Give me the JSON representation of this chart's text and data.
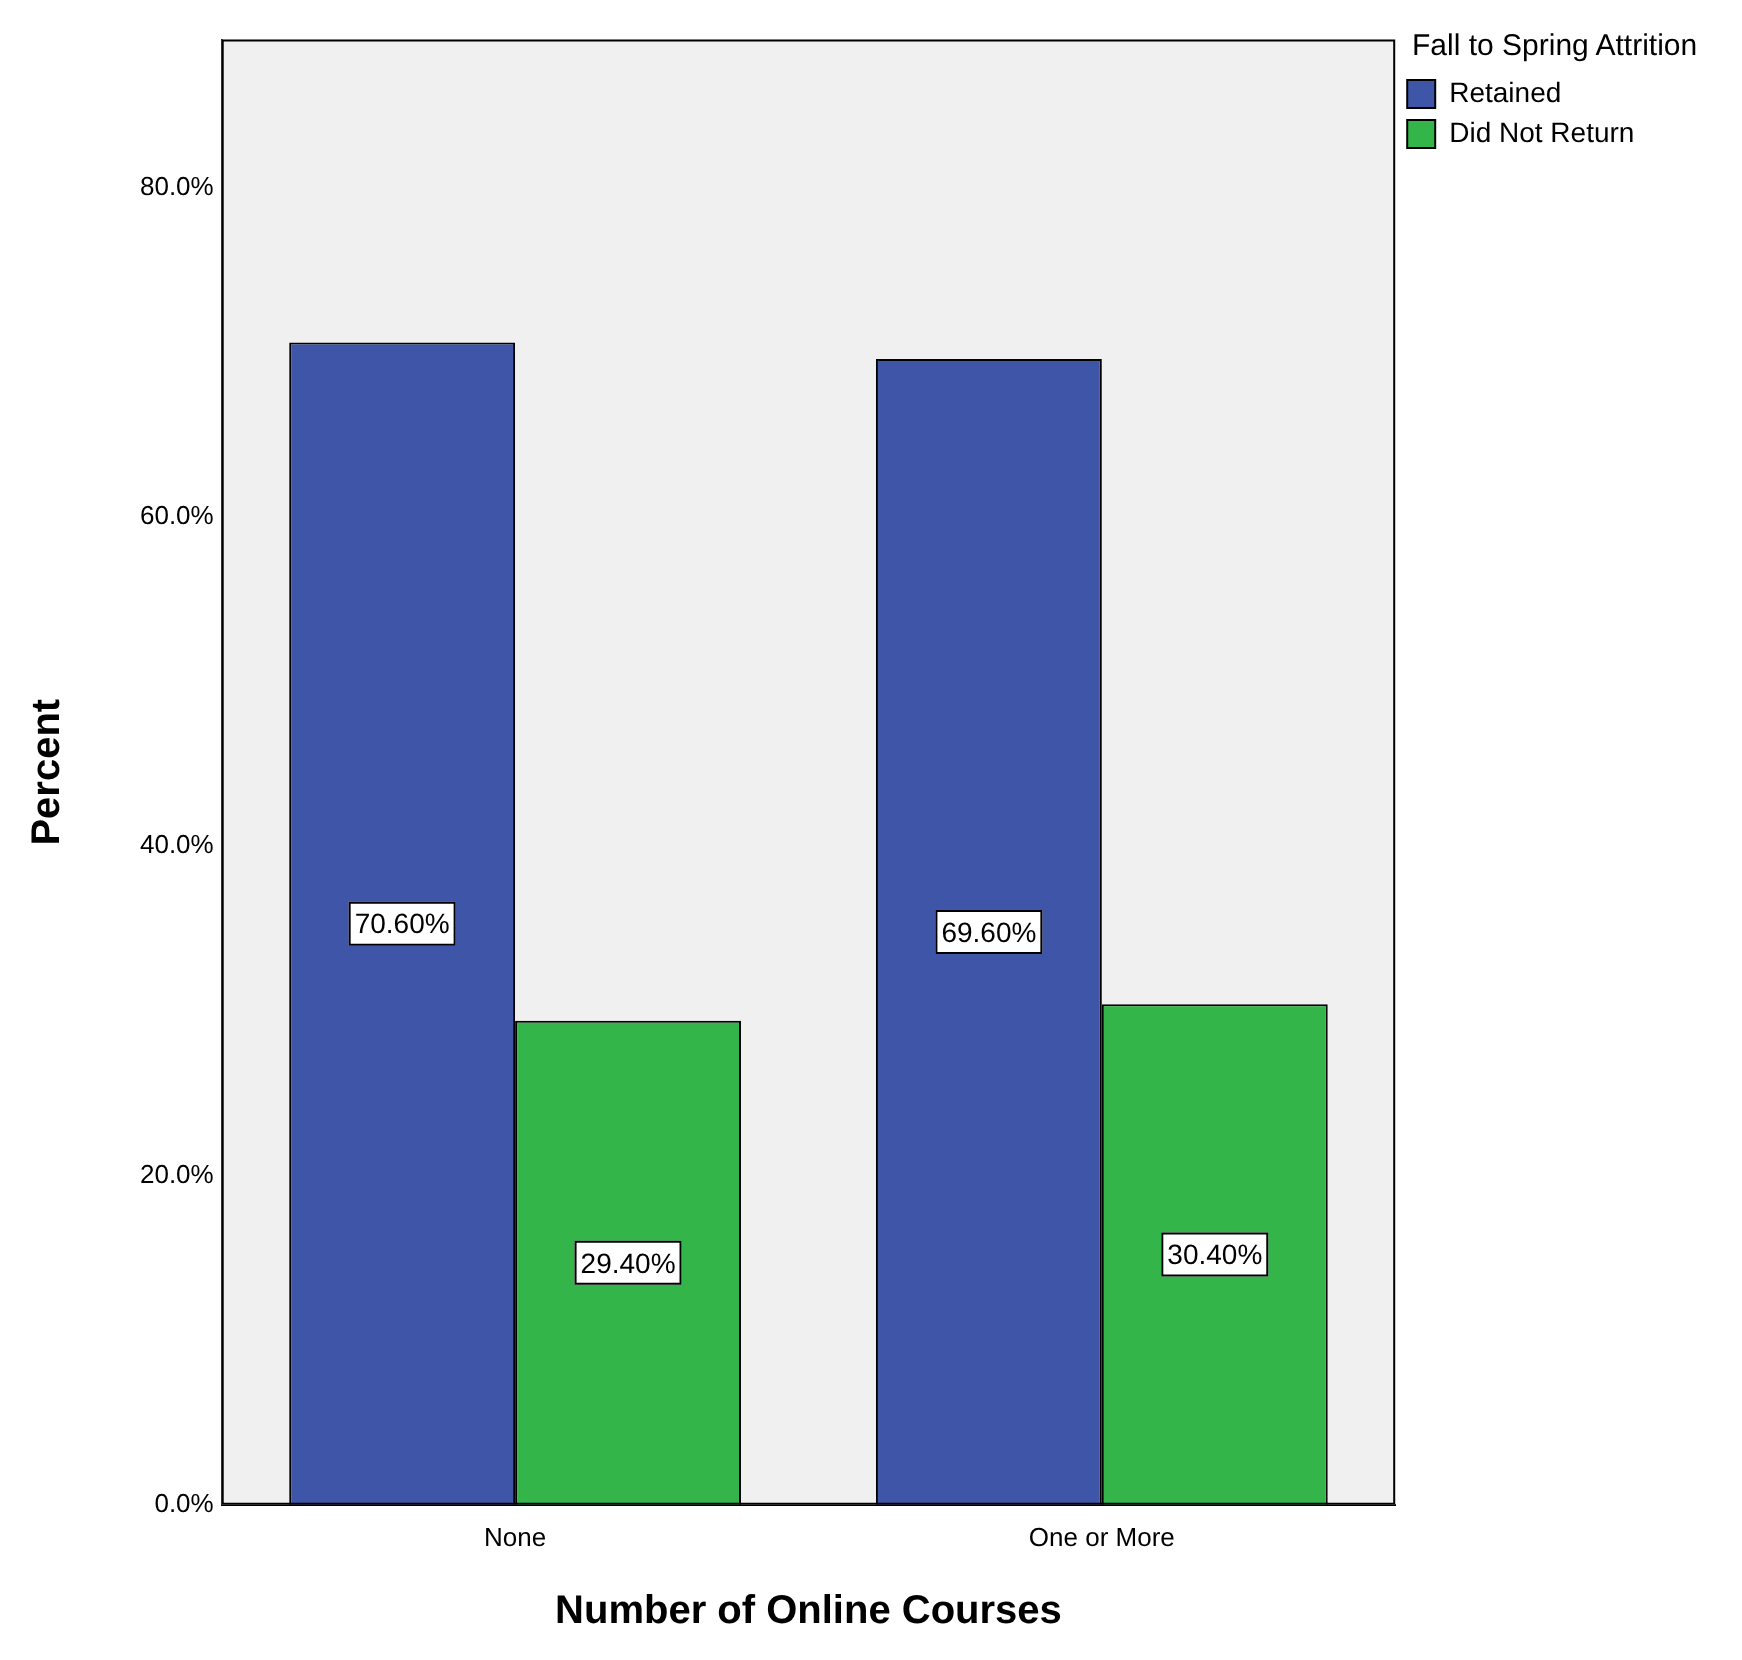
{
  "chart_data": {
    "type": "bar",
    "xlabel": "Number of Online Courses",
    "ylabel": "Percent",
    "legend_title": "Fall to Spring Attrition",
    "categories": [
      "None",
      "One or More"
    ],
    "series": [
      {
        "name": "Retained",
        "color": "#3f56a8",
        "values": [
          70.6,
          69.6
        ],
        "value_labels": [
          "70.60%",
          "69.60%"
        ]
      },
      {
        "name": "Did Not Return",
        "color": "#33b54a",
        "values": [
          29.4,
          30.4
        ],
        "value_labels": [
          "29.40%",
          "30.40%"
        ]
      }
    ],
    "ylim": [
      0,
      89
    ],
    "yticks": [
      {
        "value": 0,
        "label": "0.0%"
      },
      {
        "value": 20,
        "label": "20.0%"
      },
      {
        "value": 40,
        "label": "40.0%"
      },
      {
        "value": 60,
        "label": "60.0%"
      },
      {
        "value": 80,
        "label": "80.0%"
      }
    ],
    "grid": false,
    "legend": "top right"
  }
}
